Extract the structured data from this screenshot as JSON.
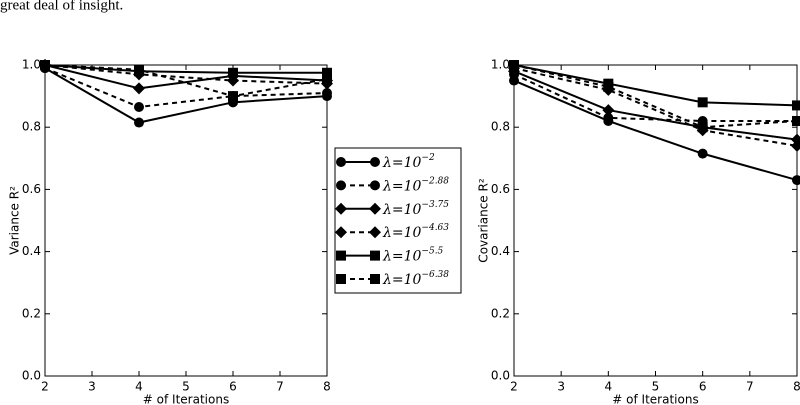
{
  "text_above": "great deal of insight.",
  "chart_data": [
    {
      "type": "line",
      "ylabel": "Variance R²",
      "xlabel": "# of Iterations",
      "x": [
        2,
        4,
        6,
        8
      ],
      "xlim": [
        2,
        8
      ],
      "xticks": [
        2,
        3,
        4,
        5,
        6,
        7,
        8
      ],
      "ylim": [
        0,
        1
      ],
      "yticks": [
        {
          "value": 0,
          "label": "0.0"
        },
        0.2,
        0.4,
        0.6,
        0.8,
        {
          "value": 1,
          "label": "1.0"
        }
      ],
      "series": [
        {
          "name": "λ=10",
          "exponent": "−2",
          "color": "#000000",
          "marker": "circle",
          "linestyle": "solid",
          "values": [
            0.99,
            0.815,
            0.88,
            0.9
          ]
        },
        {
          "name": "λ=10",
          "exponent": "−2.88",
          "color": "#000000",
          "marker": "circle",
          "linestyle": "dashed",
          "values": [
            0.99,
            0.865,
            0.9,
            0.91
          ]
        },
        {
          "name": "λ=10",
          "exponent": "−3.75",
          "color": "#000000",
          "marker": "diamond",
          "linestyle": "solid",
          "values": [
            1.0,
            0.925,
            0.965,
            0.95
          ]
        },
        {
          "name": "λ=10",
          "exponent": "−4.63",
          "color": "#000000",
          "marker": "diamond",
          "linestyle": "dashed",
          "values": [
            1.0,
            0.97,
            0.95,
            0.94
          ]
        },
        {
          "name": "λ=10",
          "exponent": "−5.5",
          "color": "#000000",
          "marker": "square",
          "linestyle": "solid",
          "values": [
            1.0,
            0.98,
            0.975,
            0.975
          ]
        },
        {
          "name": "λ=10",
          "exponent": "−6.38",
          "color": "#000000",
          "marker": "square",
          "linestyle": "dashed",
          "values": [
            1.0,
            0.985,
            0.9,
            0.955
          ]
        }
      ]
    },
    {
      "type": "line",
      "ylabel": "Covariance R²",
      "xlabel": "# of Iterations",
      "x": [
        2,
        4,
        6,
        8
      ],
      "xlim": [
        2,
        8
      ],
      "xticks": [
        2,
        3,
        4,
        5,
        6,
        7,
        8
      ],
      "ylim": [
        0,
        1
      ],
      "yticks": [
        {
          "value": 0,
          "label": "0.0"
        },
        0.2,
        0.4,
        0.6,
        0.8,
        {
          "value": 1,
          "label": "1.0"
        }
      ],
      "series": [
        {
          "color": "#000000",
          "marker": "circle",
          "linestyle": "solid",
          "values": [
            0.95,
            0.82,
            0.715,
            0.63
          ]
        },
        {
          "color": "#000000",
          "marker": "circle",
          "linestyle": "dashed",
          "values": [
            0.97,
            0.83,
            0.82,
            0.82
          ]
        },
        {
          "color": "#000000",
          "marker": "diamond",
          "linestyle": "solid",
          "values": [
            0.98,
            0.855,
            0.8,
            0.76
          ]
        },
        {
          "color": "#000000",
          "marker": "diamond",
          "linestyle": "dashed",
          "values": [
            0.99,
            0.92,
            0.79,
            0.74
          ]
        },
        {
          "color": "#000000",
          "marker": "square",
          "linestyle": "solid",
          "values": [
            1.0,
            0.94,
            0.88,
            0.87
          ]
        },
        {
          "color": "#000000",
          "marker": "square",
          "linestyle": "dashed",
          "values": [
            1.0,
            0.93,
            0.8,
            0.82
          ]
        }
      ]
    }
  ]
}
